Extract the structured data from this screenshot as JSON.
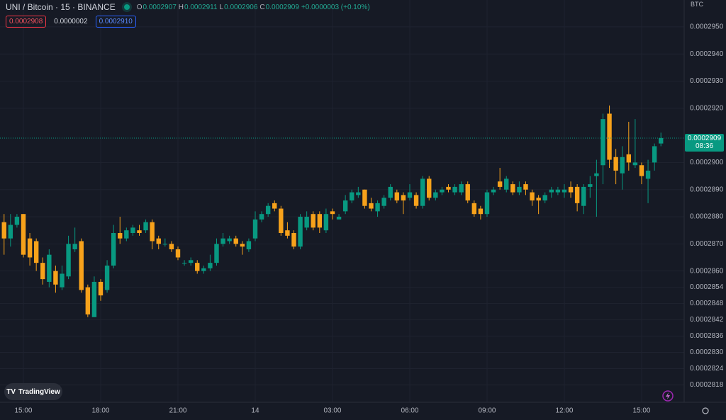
{
  "chart_data": {
    "type": "candlestick",
    "title": "UNI / Bitcoin · 15 · BINANCE",
    "legend": {
      "o_label": "O",
      "o": "0.0002907",
      "h_label": "H",
      "h": "0.0002911",
      "l_label": "L",
      "l": "0.0002906",
      "c_label": "C",
      "c": "0.0002909",
      "change": "+0.0000003 (+0.10%)"
    },
    "badges": {
      "sell": "0.0002908",
      "spread": "0.0000002",
      "buy": "0.0002910"
    },
    "currency": "BTC",
    "last_price_label": {
      "price": "0.0002909",
      "countdown": "08:36"
    },
    "watermark": "TradingView",
    "up_color": "#089981",
    "down_color": "#f7a21b",
    "grid": true,
    "categories": [
      null,
      null,
      null,
      "15:00",
      null,
      null,
      null,
      null,
      null,
      null,
      null,
      null,
      null,
      null,
      null,
      "18:00",
      null,
      null,
      null,
      null,
      null,
      null,
      null,
      null,
      null,
      null,
      null,
      "21:00",
      null,
      null,
      null,
      null,
      null,
      null,
      null,
      null,
      null,
      null,
      null,
      "14",
      null,
      null,
      null,
      null,
      null,
      null,
      null,
      null,
      null,
      null,
      null,
      "03:00",
      null,
      null,
      null,
      null,
      null,
      null,
      null,
      null,
      null,
      null,
      null,
      "06:00",
      null,
      null,
      null,
      null,
      null,
      null,
      null,
      null,
      null,
      null,
      null,
      "09:00",
      null,
      null,
      null,
      null,
      null,
      null,
      null,
      null,
      null,
      null,
      null,
      "12:00",
      null,
      null,
      null,
      null,
      null,
      null,
      null,
      null,
      null,
      null,
      null,
      "15:00",
      null,
      null,
      null
    ],
    "open": [
      0.0002878,
      0.0002872,
      0.0002877,
      0.0002881,
      0.0002872,
      0.0002871,
      0.0002863,
      0.0002856,
      0.000286,
      0.0002854,
      0.0002858,
      0.0002868,
      0.0002871,
      0.0002854,
      0.0002843,
      0.0002856,
      0.0002853,
      0.0002862,
      0.0002874,
      0.0002872,
      0.0002874,
      0.0002875,
      0.0002875,
      0.0002878,
      0.0002872,
      0.000287,
      0.000287,
      0.0002868,
      0.0002863,
      0.0002863,
      0.0002863,
      0.000286,
      0.0002861,
      0.0002863,
      0.000287,
      0.0002871,
      0.0002872,
      0.000287,
      0.0002868,
      0.0002872,
      0.0002879,
      0.0002881,
      0.0002885,
      0.0002883,
      0.0002875,
      0.0002874,
      0.0002869,
      0.0002876,
      0.0002881,
      0.0002881,
      0.0002875,
      0.0002882,
      0.0002879,
      0.0002882,
      0.0002886,
      0.0002888,
      0.000289,
      0.0002885,
      0.0002882,
      0.0002884,
      0.0002887,
      0.0002889,
      0.0002888,
      0.0002887,
      0.0002888,
      0.0002884,
      0.0002894,
      0.0002887,
      0.0002889,
      0.0002891,
      0.0002889,
      0.0002889,
      0.0002892,
      0.0002885,
      0.0002883,
      0.0002881,
      0.0002889,
      0.0002893,
      0.000289,
      0.0002892,
      0.0002889,
      0.0002892,
      0.0002889,
      0.0002887,
      0.0002886,
      0.0002889,
      0.0002889,
      0.0002889,
      0.0002891,
      0.0002891,
      0.0002884,
      0.0002891,
      0.0002895,
      0.0002899,
      0.0002918,
      0.0002902,
      0.0002896,
      0.0002903,
      0.0002899,
      0.0002899,
      0.0002894,
      0.00029,
      0.0002907
    ],
    "high": [
      0.0002881,
      0.0002881,
      0.0002881,
      0.0002881,
      0.0002874,
      0.0002872,
      0.0002865,
      0.0002868,
      0.0002862,
      0.0002862,
      0.0002873,
      0.0002876,
      0.0002872,
      0.0002855,
      0.0002858,
      0.0002857,
      0.0002864,
      0.0002877,
      0.000288,
      0.0002876,
      0.0002877,
      0.0002877,
      0.0002879,
      0.0002879,
      0.0002873,
      0.0002872,
      0.0002871,
      0.0002869,
      0.0002864,
      0.0002865,
      0.0002864,
      0.0002862,
      0.0002866,
      0.0002872,
      0.0002874,
      0.0002873,
      0.0002873,
      0.0002871,
      0.0002872,
      0.0002882,
      0.0002882,
      0.0002885,
      0.0002886,
      0.0002884,
      0.0002878,
      0.0002875,
      0.0002881,
      0.0002882,
      0.0002882,
      0.0002882,
      0.0002883,
      0.0002883,
      0.0002881,
      0.0002888,
      0.000289,
      0.0002891,
      0.000289,
      0.0002887,
      0.0002886,
      0.0002888,
      0.0002892,
      0.000289,
      0.0002889,
      0.0002892,
      0.0002889,
      0.0002895,
      0.0002895,
      0.000289,
      0.0002891,
      0.0002892,
      0.0002892,
      0.0002893,
      0.0002893,
      0.0002886,
      0.0002884,
      0.000289,
      0.0002891,
      0.0002898,
      0.0002895,
      0.0002893,
      0.0002893,
      0.0002893,
      0.000289,
      0.0002888,
      0.0002889,
      0.0002891,
      0.0002891,
      0.0002892,
      0.0002893,
      0.0002892,
      0.0002892,
      0.0002895,
      0.0002901,
      0.0002918,
      0.0002921,
      0.0002905,
      0.0002906,
      0.0002915,
      0.0002916,
      0.00029,
      0.0002901,
      0.0002907,
      0.0002911
    ],
    "low": [
      0.0002866,
      0.0002869,
      0.0002876,
      0.0002865,
      0.0002862,
      0.000286,
      0.0002855,
      0.0002854,
      0.0002852,
      0.0002853,
      0.0002857,
      0.0002867,
      0.0002852,
      0.0002843,
      0.0002843,
      0.0002849,
      0.0002852,
      0.0002861,
      0.000287,
      0.0002871,
      0.0002873,
      0.0002873,
      0.0002874,
      0.0002868,
      0.0002868,
      0.0002869,
      0.0002867,
      0.0002864,
      0.0002862,
      0.0002862,
      0.0002859,
      0.0002859,
      0.000286,
      0.0002862,
      0.0002869,
      0.000287,
      0.0002869,
      0.0002866,
      0.0002867,
      0.0002871,
      0.0002878,
      0.000288,
      0.0002882,
      0.0002873,
      0.0002872,
      0.0002868,
      0.0002868,
      0.0002875,
      0.0002875,
      0.0002874,
      0.0002874,
      0.0002879,
      0.0002879,
      0.0002881,
      0.0002885,
      0.0002887,
      0.0002883,
      0.0002882,
      0.000288,
      0.0002883,
      0.0002886,
      0.0002885,
      0.0002881,
      0.0002886,
      0.0002883,
      0.0002883,
      0.0002886,
      0.0002886,
      0.0002888,
      0.0002889,
      0.0002888,
      0.0002888,
      0.0002885,
      0.000288,
      0.0002879,
      0.000288,
      0.0002888,
      0.000289,
      0.0002889,
      0.0002888,
      0.0002888,
      0.0002888,
      0.0002884,
      0.0002881,
      0.0002885,
      0.0002887,
      0.0002888,
      0.0002887,
      0.0002887,
      0.0002882,
      0.0002881,
      0.0002887,
      0.000288,
      0.0002892,
      0.0002898,
      0.0002892,
      0.000289,
      0.0002897,
      0.0002898,
      0.0002892,
      0.0002885,
      0.0002897,
      0.0002906
    ],
    "close": [
      0.0002872,
      0.0002877,
      0.000288,
      0.0002866,
      0.0002865,
      0.0002863,
      0.0002857,
      0.0002866,
      0.0002855,
      0.0002859,
      0.000287,
      0.000287,
      0.0002853,
      0.0002844,
      0.0002856,
      0.0002851,
      0.0002862,
      0.0002874,
      0.0002872,
      0.0002875,
      0.0002876,
      0.0002874,
      0.0002878,
      0.0002871,
      0.000287,
      0.000287,
      0.0002868,
      0.0002865,
      0.0002863,
      0.0002864,
      0.000286,
      0.0002861,
      0.0002863,
      0.000287,
      0.0002872,
      0.0002872,
      0.000287,
      0.0002869,
      0.0002871,
      0.0002879,
      0.0002881,
      0.0002884,
      0.0002883,
      0.0002874,
      0.0002873,
      0.0002869,
      0.000288,
      0.000288,
      0.0002876,
      0.0002876,
      0.0002881,
      0.0002881,
      0.000288,
      0.0002886,
      0.0002889,
      0.0002889,
      0.0002884,
      0.0002883,
      0.0002885,
      0.0002887,
      0.0002891,
      0.0002886,
      0.0002886,
      0.0002889,
      0.0002884,
      0.0002894,
      0.0002887,
      0.0002889,
      0.000289,
      0.000289,
      0.0002891,
      0.0002892,
      0.0002886,
      0.0002881,
      0.0002881,
      0.0002889,
      0.000289,
      0.0002891,
      0.0002894,
      0.0002889,
      0.0002891,
      0.000289,
      0.0002886,
      0.0002886,
      0.0002888,
      0.000289,
      0.000289,
      0.000289,
      0.0002889,
      0.0002885,
      0.0002891,
      0.0002892,
      0.0002896,
      0.0002916,
      0.0002901,
      0.0002897,
      0.0002902,
      0.00029,
      0.00029,
      0.0002895,
      0.0002897,
      0.0002906,
      0.0002909
    ],
    "ylim": [
      0.00028116,
      0.00029599
    ],
    "yticks": [
      {
        "value": 0.000295,
        "label": "0.0002950"
      },
      {
        "value": 0.000294,
        "label": "0.0002940"
      },
      {
        "value": 0.000293,
        "label": "0.0002930"
      },
      {
        "value": 0.000292,
        "label": "0.0002920"
      },
      {
        "value": 0.00029,
        "label": "0.0002900"
      },
      {
        "value": 0.000289,
        "label": "0.0002890"
      },
      {
        "value": 0.000288,
        "label": "0.0002880"
      },
      {
        "value": 0.000287,
        "label": "0.0002870"
      },
      {
        "value": 0.000286,
        "label": "0.0002860"
      },
      {
        "value": 0.0002854,
        "label": "0.0002854"
      },
      {
        "value": 0.0002848,
        "label": "0.0002848"
      },
      {
        "value": 0.0002842,
        "label": "0.0002842"
      },
      {
        "value": 0.0002836,
        "label": "0.0002836"
      },
      {
        "value": 0.000283,
        "label": "0.0002830"
      },
      {
        "value": 0.0002824,
        "label": "0.0002824"
      },
      {
        "value": 0.0002818,
        "label": "0.0002818"
      }
    ]
  }
}
